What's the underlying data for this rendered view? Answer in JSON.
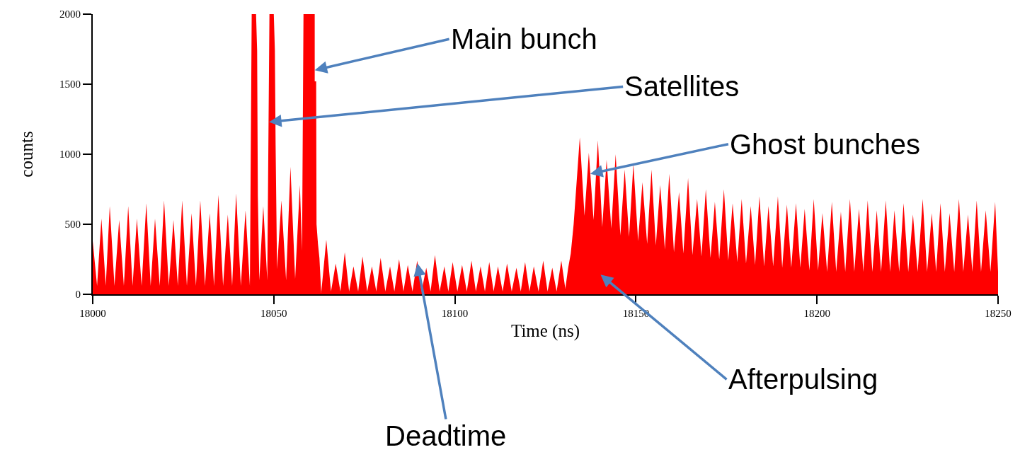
{
  "chart_data": {
    "type": "area",
    "color": "#ff0000",
    "xlabel": "Time (ns)",
    "ylabel": "counts",
    "grid": false,
    "xlim": [
      18000,
      18250
    ],
    "ylim": [
      0,
      2000
    ],
    "xticks": [
      18000,
      18050,
      18100,
      18150,
      18200,
      18250
    ],
    "yticks": [
      0,
      500,
      1000,
      1500,
      2000
    ],
    "x": [
      18000.0,
      18001.2,
      18002.4,
      18003.6,
      18004.7,
      18006.0,
      18007.3,
      18008.6,
      18009.8,
      18011.0,
      18012.2,
      18013.5,
      18014.8,
      18016.0,
      18017.2,
      18018.5,
      18019.7,
      18021.0,
      18022.3,
      18023.5,
      18024.7,
      18026.0,
      18027.3,
      18028.5,
      18029.7,
      18031.0,
      18032.3,
      18033.5,
      18034.7,
      18036.0,
      18037.3,
      18038.5,
      18039.6,
      18040.9,
      18042.2,
      18043.4,
      18043.9,
      18045.1,
      18045.4,
      18045.6,
      18046.0,
      18047.1,
      18048.2,
      18048.8,
      18050.0,
      18050.3,
      18050.5,
      18050.9,
      18052.1,
      18053.4,
      18054.6,
      18055.9,
      18057.2,
      18057.8,
      18058.2,
      18061.3,
      18061.3,
      18061.7,
      18061.8,
      18062.2,
      18062.6,
      18063.1,
      18064.5,
      18065.8,
      18067.1,
      18068.4,
      18069.6,
      18070.8,
      18072.0,
      18073.3,
      18074.5,
      18075.8,
      18077.1,
      18078.3,
      18079.5,
      18080.8,
      18082.1,
      18083.3,
      18084.6,
      18085.8,
      18087.0,
      18088.3,
      18089.6,
      18090.8,
      18092.1,
      18093.3,
      18094.5,
      18095.8,
      18097.1,
      18098.2,
      18099.4,
      18100.7,
      18102.0,
      18103.3,
      18104.6,
      18105.8,
      18107.1,
      18108.3,
      18109.5,
      18110.7,
      18111.9,
      18113.2,
      18114.4,
      18115.7,
      18117.0,
      18118.2,
      18119.4,
      18120.6,
      18121.8,
      18123.1,
      18124.4,
      18125.6,
      18126.9,
      18128.1,
      18129.4,
      18130.5,
      18131.3,
      18132.0,
      18132.8,
      18134.5,
      18135.8,
      18137.0,
      18138.3,
      18139.5,
      18140.7,
      18141.9,
      18143.2,
      18144.4,
      18145.7,
      18146.9,
      18148.1,
      18149.3,
      18150.6,
      18151.8,
      18153.1,
      18154.3,
      18155.5,
      18156.7,
      18158.0,
      18159.2,
      18160.5,
      18161.9,
      18163.1,
      18164.4,
      18165.6,
      18166.9,
      18168.1,
      18169.3,
      18170.6,
      18171.8,
      18173.0,
      18174.3,
      18175.5,
      18176.7,
      18178.0,
      18179.2,
      18180.4,
      18181.7,
      18182.9,
      18184.1,
      18185.4,
      18186.6,
      18187.9,
      18189.2,
      18190.4,
      18191.7,
      18192.9,
      18194.2,
      18195.4,
      18196.6,
      18197.9,
      18199.1,
      18200.3,
      18201.5,
      18202.8,
      18204.1,
      18205.3,
      18206.6,
      18207.8,
      18209.1,
      18210.3,
      18211.6,
      18212.8,
      18214.0,
      18215.3,
      18216.5,
      18217.7,
      18219.0,
      18220.2,
      18221.4,
      18222.7,
      18223.9,
      18225.2,
      18226.5,
      18227.8,
      18229.2,
      18230.4,
      18231.7,
      18232.9,
      18234.1,
      18235.3,
      18236.6,
      18237.9,
      18239.2,
      18240.4,
      18241.7,
      18242.9,
      18244.1,
      18245.3,
      18246.6,
      18247.9,
      18249.2,
      18250.0
    ],
    "values": [
      380,
      60,
      540,
      60,
      630,
      60,
      530,
      60,
      630,
      60,
      540,
      60,
      650,
      60,
      540,
      60,
      670,
      60,
      530,
      60,
      670,
      60,
      580,
      60,
      670,
      60,
      580,
      60,
      710,
      60,
      570,
      60,
      720,
      60,
      600,
      60,
      2000,
      2000,
      1740,
      700,
      100,
      630,
      100,
      2000,
      2000,
      1740,
      1070,
      180,
      670,
      100,
      910,
      110,
      780,
      310,
      2000,
      2000,
      1520,
      1520,
      500,
      360,
      260,
      10,
      390,
      20,
      220,
      20,
      300,
      20,
      200,
      20,
      270,
      20,
      200,
      20,
      260,
      20,
      200,
      20,
      250,
      20,
      210,
      20,
      240,
      20,
      190,
      20,
      280,
      20,
      200,
      20,
      230,
      20,
      210,
      20,
      240,
      20,
      200,
      20,
      230,
      20,
      200,
      20,
      220,
      20,
      190,
      20,
      230,
      20,
      200,
      20,
      240,
      20,
      190,
      20,
      240,
      40,
      190,
      290,
      500,
      1120,
      560,
      1010,
      530,
      1100,
      480,
      960,
      470,
      1000,
      420,
      890,
      410,
      930,
      380,
      800,
      360,
      890,
      350,
      780,
      320,
      860,
      300,
      730,
      290,
      830,
      280,
      680,
      270,
      750,
      260,
      660,
      250,
      750,
      240,
      650,
      230,
      680,
      220,
      630,
      210,
      700,
      200,
      630,
      200,
      700,
      190,
      640,
      190,
      650,
      190,
      610,
      170,
      680,
      170,
      580,
      160,
      660,
      160,
      590,
      160,
      680,
      160,
      610,
      160,
      670,
      160,
      600,
      160,
      670,
      160,
      600,
      160,
      650,
      160,
      570,
      160,
      680,
      160,
      580,
      160,
      650,
      160,
      580,
      160,
      680,
      160,
      570,
      160,
      670,
      160,
      600,
      160,
      660,
      160
    ],
    "annotations": [
      {
        "text": "Main bunch",
        "x": 18061.3,
        "y": 1600
      },
      {
        "text": "Satellites",
        "x": 18048.7,
        "y": 1230
      },
      {
        "text": "Ghost bunches",
        "x": 18137.4,
        "y": 860
      },
      "Afterpulsing",
      {
        "text": "Deadtime",
        "x": 18089.7,
        "y": 220
      }
    ]
  }
}
